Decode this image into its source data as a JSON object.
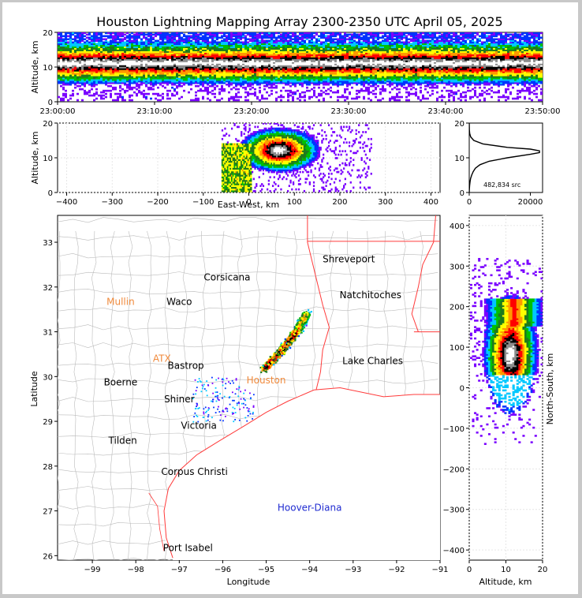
{
  "title": "Houston Lightning Mapping Array 2300-2350 UTC April 05, 2025",
  "colors": {
    "scale": [
      "#7a00ff",
      "#0033ff",
      "#00c8ff",
      "#00c000",
      "#1e7a1e",
      "#ffff00",
      "#ff9900",
      "#ff0000",
      "#000000",
      "#8c8c8c",
      "#ffffff"
    ],
    "state_border": "#ff3b3b",
    "county_line": "#bbbbbb",
    "city_black": "#000000",
    "city_orange": "#f08a3c",
    "city_blue": "#1f2bd1"
  },
  "chart_data": [
    {
      "id": "time_height",
      "type": "heatmap",
      "xlabel": "",
      "ylabel": "Altitude, km",
      "x_tick_labels": [
        "23:00:00",
        "23:10:00",
        "23:20:00",
        "23:30:00",
        "23:40:00",
        "23:50:00"
      ],
      "y_ticks": [
        0,
        10,
        20
      ],
      "ylim": [
        0,
        20
      ],
      "band_core_altitude_km": 11,
      "band_top_altitude_km": 20,
      "band_bottom_altitude_km": 2
    },
    {
      "id": "ew_altitude",
      "type": "heatmap",
      "xlabel": "East-West, km",
      "ylabel": "Altitude, km",
      "x_ticks": [
        -400,
        -300,
        -200,
        -100,
        0,
        100,
        200,
        300,
        400
      ],
      "y_ticks": [
        0,
        10,
        20
      ],
      "xlim": [
        -420,
        420
      ],
      "ylim": [
        0,
        20
      ],
      "core_x_km": 65,
      "core_altitude_km": 12
    },
    {
      "id": "altitude_histogram",
      "type": "line",
      "x_ticks": [
        0,
        20000
      ],
      "y_ticks": [
        0,
        10,
        20
      ],
      "xlim": [
        0,
        24000
      ],
      "ylim": [
        0,
        20
      ],
      "annotation": "482,834 src",
      "peak_altitude_km": 12,
      "peak_count": 23000,
      "profile": [
        [
          0,
          0
        ],
        [
          1,
          50
        ],
        [
          2,
          120
        ],
        [
          3,
          250
        ],
        [
          4,
          450
        ],
        [
          5,
          800
        ],
        [
          6,
          1300
        ],
        [
          7,
          2000
        ],
        [
          8,
          3500
        ],
        [
          9,
          6500
        ],
        [
          10,
          12500
        ],
        [
          11,
          20000
        ],
        [
          11.5,
          23000
        ],
        [
          12,
          23000
        ],
        [
          12.5,
          20000
        ],
        [
          13,
          12500
        ],
        [
          14,
          4500
        ],
        [
          15,
          1500
        ],
        [
          16,
          500
        ],
        [
          17,
          150
        ],
        [
          18,
          60
        ],
        [
          19,
          20
        ],
        [
          20,
          5
        ]
      ]
    },
    {
      "id": "plan_view",
      "type": "scatter",
      "xlabel": "Longitude",
      "ylabel": "Latitude",
      "x_ticks": [
        -99,
        -98,
        -97,
        -96,
        -95,
        -94,
        -93,
        -92,
        -91
      ],
      "y_ticks": [
        26,
        27,
        28,
        29,
        30,
        31,
        32,
        33
      ],
      "xlim": [
        -99.8,
        -91
      ],
      "ylim": [
        25.9,
        33.6
      ],
      "cities": [
        {
          "name": "Shreveport",
          "lon": -93.1,
          "lat": 32.55,
          "color": "black"
        },
        {
          "name": "Corsicana",
          "lon": -95.9,
          "lat": 32.15,
          "color": "black"
        },
        {
          "name": "Mullin",
          "lon": -98.35,
          "lat": 31.6,
          "color": "orange"
        },
        {
          "name": "Waco",
          "lon": -97.0,
          "lat": 31.6,
          "color": "black"
        },
        {
          "name": "Natchitoches",
          "lon": -92.6,
          "lat": 31.75,
          "color": "black"
        },
        {
          "name": "ATX",
          "lon": -97.4,
          "lat": 30.33,
          "color": "orange"
        },
        {
          "name": "Bastrop",
          "lon": -96.85,
          "lat": 30.17,
          "color": "black"
        },
        {
          "name": "Lake Charles",
          "lon": -92.55,
          "lat": 30.28,
          "color": "black"
        },
        {
          "name": "Boerne",
          "lon": -98.35,
          "lat": 29.8,
          "color": "black"
        },
        {
          "name": "Houston",
          "lon": -95.0,
          "lat": 29.85,
          "color": "orange"
        },
        {
          "name": "Shiner",
          "lon": -97.0,
          "lat": 29.42,
          "color": "black"
        },
        {
          "name": "Victoria",
          "lon": -96.55,
          "lat": 28.83,
          "color": "black"
        },
        {
          "name": "Tilden",
          "lon": -98.3,
          "lat": 28.5,
          "color": "black"
        },
        {
          "name": "Corpus Christi",
          "lon": -96.65,
          "lat": 27.8,
          "color": "black"
        },
        {
          "name": "Hoover-Diana",
          "lon": -94.0,
          "lat": 27.0,
          "color": "blue"
        },
        {
          "name": "Port Isabel",
          "lon": -96.8,
          "lat": 26.1,
          "color": "black"
        }
      ],
      "storm_axis": [
        [
          -95.05,
          30.2
        ],
        [
          -94.65,
          30.6
        ],
        [
          -94.3,
          31.05
        ],
        [
          -94.1,
          31.4
        ]
      ]
    },
    {
      "id": "ns_altitude",
      "type": "heatmap",
      "xlabel": "Altitude, km",
      "ylabel": "North-South, km",
      "x_ticks": [
        0,
        10,
        20
      ],
      "y_ticks": [
        -400,
        -300,
        -200,
        -100,
        0,
        100,
        200,
        300,
        400
      ],
      "xlim": [
        0,
        20
      ],
      "ylim": [
        -425,
        425
      ],
      "core_ns_km": 80,
      "core_altitude_km": 11
    }
  ]
}
